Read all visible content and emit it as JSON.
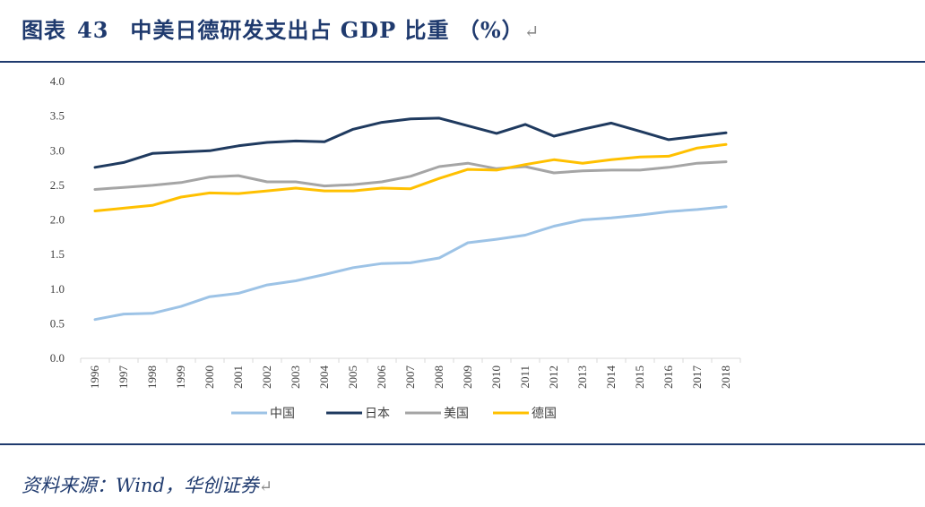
{
  "title": {
    "prefix": "图表",
    "number": "43",
    "text": "中美日德研发支出占 GDP 比重 （%）",
    "return_mark": "↵"
  },
  "source": {
    "text": "资料来源：Wind，华创证券",
    "return_mark": "↵"
  },
  "colors": {
    "brand": "#1f3a6e",
    "china": "#9dc3e6",
    "japan": "#1f3a5f",
    "usa": "#a5a5a5",
    "germany": "#ffc000"
  },
  "chart_data": {
    "type": "line",
    "title": "中美日德研发支出占 GDP 比重 （%）",
    "xlabel": "",
    "ylabel": "",
    "ylim": [
      0.0,
      4.0
    ],
    "yticks": [
      "0.0",
      "0.5",
      "1.0",
      "1.5",
      "2.0",
      "2.5",
      "3.0",
      "3.5",
      "4.0"
    ],
    "grid": false,
    "legend_position": "bottom",
    "categories": [
      "1996",
      "1997",
      "1998",
      "1999",
      "2000",
      "2001",
      "2002",
      "2003",
      "2004",
      "2005",
      "2006",
      "2007",
      "2008",
      "2009",
      "2010",
      "2011",
      "2012",
      "2013",
      "2014",
      "2015",
      "2016",
      "2017",
      "2018"
    ],
    "series": [
      {
        "name": "中国",
        "color": "#9dc3e6",
        "values": [
          0.56,
          0.64,
          0.65,
          0.75,
          0.89,
          0.94,
          1.06,
          1.12,
          1.21,
          1.31,
          1.37,
          1.38,
          1.45,
          1.67,
          1.72,
          1.78,
          1.91,
          2.0,
          2.03,
          2.07,
          2.12,
          2.15,
          2.19
        ]
      },
      {
        "name": "日本",
        "color": "#1f3a5f",
        "values": [
          2.76,
          2.83,
          2.96,
          2.98,
          3.0,
          3.07,
          3.12,
          3.14,
          3.13,
          3.31,
          3.41,
          3.46,
          3.47,
          3.36,
          3.25,
          3.38,
          3.21,
          3.31,
          3.4,
          3.28,
          3.16,
          3.21,
          3.26
        ]
      },
      {
        "name": "美国",
        "color": "#a5a5a5",
        "values": [
          2.44,
          2.47,
          2.5,
          2.54,
          2.62,
          2.64,
          2.55,
          2.55,
          2.49,
          2.51,
          2.55,
          2.63,
          2.77,
          2.82,
          2.74,
          2.77,
          2.68,
          2.71,
          2.72,
          2.72,
          2.76,
          2.82,
          2.84
        ]
      },
      {
        "name": "德国",
        "color": "#ffc000",
        "values": [
          2.13,
          2.17,
          2.21,
          2.33,
          2.39,
          2.38,
          2.42,
          2.46,
          2.42,
          2.42,
          2.46,
          2.45,
          2.6,
          2.73,
          2.72,
          2.8,
          2.87,
          2.82,
          2.87,
          2.91,
          2.92,
          3.04,
          3.09
        ]
      }
    ]
  }
}
